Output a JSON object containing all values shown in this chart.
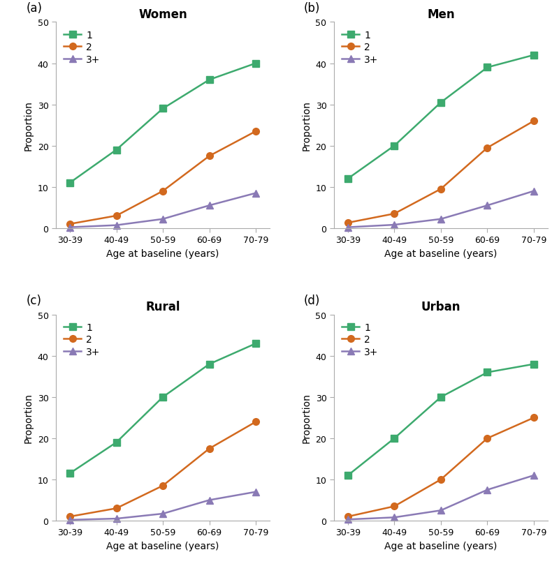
{
  "x_labels": [
    "30-39",
    "40-49",
    "50-59",
    "60-69",
    "70-79"
  ],
  "x_positions": [
    0,
    1,
    2,
    3,
    4
  ],
  "panels": [
    {
      "label": "(a)",
      "title": "Women",
      "series": [
        {
          "name": "1",
          "values": [
            11,
            19,
            29,
            36,
            40
          ],
          "color": "#3daa6e",
          "marker": "s"
        },
        {
          "name": "2",
          "values": [
            1,
            3,
            9,
            17.5,
            23.5
          ],
          "color": "#d2691e",
          "marker": "o"
        },
        {
          "name": "3+",
          "values": [
            0.2,
            0.7,
            2.2,
            5.5,
            8.5
          ],
          "color": "#8a7ab5",
          "marker": "^"
        }
      ]
    },
    {
      "label": "(b)",
      "title": "Men",
      "series": [
        {
          "name": "1",
          "values": [
            12,
            20,
            30.5,
            39,
            42
          ],
          "color": "#3daa6e",
          "marker": "s"
        },
        {
          "name": "2",
          "values": [
            1.3,
            3.5,
            9.5,
            19.5,
            26
          ],
          "color": "#d2691e",
          "marker": "o"
        },
        {
          "name": "3+",
          "values": [
            0.2,
            0.8,
            2.2,
            5.5,
            9
          ],
          "color": "#8a7ab5",
          "marker": "^"
        }
      ]
    },
    {
      "label": "(c)",
      "title": "Rural",
      "series": [
        {
          "name": "1",
          "values": [
            11.5,
            19,
            30,
            38,
            43
          ],
          "color": "#3daa6e",
          "marker": "s"
        },
        {
          "name": "2",
          "values": [
            1,
            3,
            8.5,
            17.5,
            24
          ],
          "color": "#d2691e",
          "marker": "o"
        },
        {
          "name": "3+",
          "values": [
            0.2,
            0.5,
            1.7,
            5,
            7
          ],
          "color": "#8a7ab5",
          "marker": "^"
        }
      ]
    },
    {
      "label": "(d)",
      "title": "Urban",
      "series": [
        {
          "name": "1",
          "values": [
            11,
            20,
            30,
            36,
            38
          ],
          "color": "#3daa6e",
          "marker": "s"
        },
        {
          "name": "2",
          "values": [
            1,
            3.5,
            10,
            20,
            25
          ],
          "color": "#d2691e",
          "marker": "o"
        },
        {
          "name": "3+",
          "values": [
            0.3,
            0.8,
            2.5,
            7.5,
            11
          ],
          "color": "#8a7ab5",
          "marker": "^"
        }
      ]
    }
  ],
  "ylim": [
    0,
    50
  ],
  "yticks": [
    0,
    10,
    20,
    30,
    40,
    50
  ],
  "ylabel": "Proportion",
  "xlabel": "Age at baseline (years)",
  "background_color": "#ffffff",
  "panel_bg": "#ffffff",
  "line_width": 1.8,
  "marker_size": 7,
  "title_fontsize": 12,
  "axis_fontsize": 10,
  "tick_fontsize": 9,
  "legend_fontsize": 10
}
